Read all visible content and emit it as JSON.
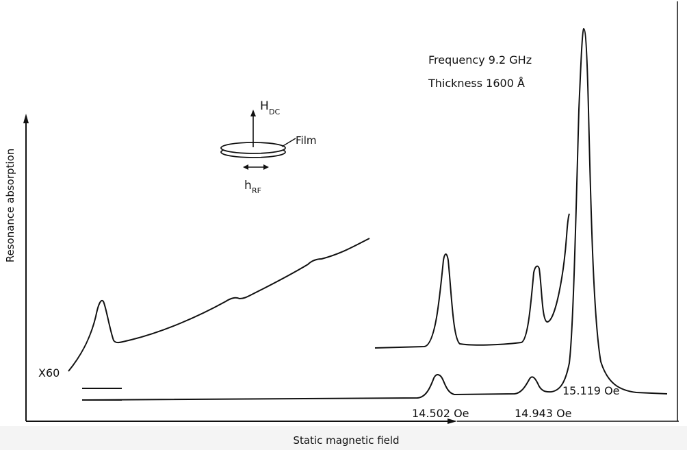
{
  "chart_data": {
    "type": "line",
    "xlabel": "Static magnetic field",
    "ylabel": "Resonance absorption",
    "annotations": {
      "frequency": "Frequency 9.2 GHz",
      "thickness": "Thickness 1600 Å",
      "h_dc": "H",
      "h_dc_sub": "DC",
      "film": "Film",
      "h_rf": "h",
      "h_rf_sub": "RF",
      "magnification": "X60"
    },
    "peaks": [
      {
        "label": "14.502 Oe",
        "field": 14.502
      },
      {
        "label": "14.943 Oe",
        "field": 14.943
      },
      {
        "label": "15.119 Oe",
        "field": 15.119
      }
    ],
    "grid": false,
    "legend": "none"
  },
  "colors": {
    "ink": "#111111",
    "background": "#ffffff",
    "strip": "#f4f4f4"
  }
}
